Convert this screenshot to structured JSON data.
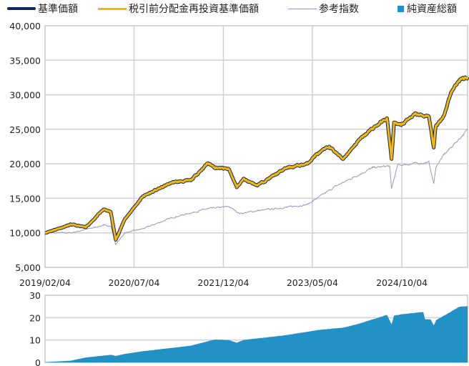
{
  "legend": [
    {
      "label": "基準価額",
      "color": "#0d2466",
      "kind": "line"
    },
    {
      "label": "税引前分配金再投資基準価額",
      "color": "#f5b800",
      "kind": "line"
    },
    {
      "label": "参考指数",
      "color": "#9b93c8",
      "kind": "line"
    },
    {
      "label": "純資産総額",
      "color": "#2191c6",
      "kind": "box"
    }
  ],
  "chart_data": [
    {
      "type": "line",
      "xlim": [
        "2019/02/04",
        "2025/10/20"
      ],
      "ylim": [
        5000,
        40000
      ],
      "yticks": [
        "5,000",
        "10,000",
        "15,000",
        "20,000",
        "25,000",
        "30,000",
        "35,000",
        "40,000"
      ],
      "ytick_values": [
        5000,
        10000,
        15000,
        20000,
        25000,
        30000,
        35000,
        40000
      ],
      "xticks": [
        "2019/02/04",
        "2020/07/04",
        "2021/12/04",
        "2023/05/04",
        "2024/10/04"
      ],
      "grid": true,
      "legend_position": "top",
      "series": [
        {
          "name": "基準価額",
          "color": "#0d2466",
          "points": [
            [
              "2019/02/04",
              10000
            ],
            [
              "2019/07/05",
              11200
            ],
            [
              "2019/09/28",
              10800
            ],
            [
              "2020/01/10",
              13400
            ],
            [
              "2020/02/20",
              13000
            ],
            [
              "2020/03/20",
              9000
            ],
            [
              "2020/05/12",
              12000
            ],
            [
              "2020/08/25",
              15300
            ],
            [
              "2021/02/10",
              17300
            ],
            [
              "2021/05/30",
              17600
            ],
            [
              "2021/09/05",
              20100
            ],
            [
              "2021/10/15",
              19500
            ],
            [
              "2022/01/05",
              19200
            ],
            [
              "2022/02/20",
              16600
            ],
            [
              "2022/03/30",
              17800
            ],
            [
              "2022/06/20",
              16900
            ],
            [
              "2022/12/05",
              19400
            ],
            [
              "2023/04/05",
              20000
            ],
            [
              "2023/05/20",
              21200
            ],
            [
              "2023/08/10",
              22500
            ],
            [
              "2023/10/28",
              20700
            ],
            [
              "2024/01/25",
              23300
            ],
            [
              "2024/04/15",
              25100
            ],
            [
              "2024/07/10",
              26600
            ],
            [
              "2024/08/05",
              20700
            ],
            [
              "2024/08/20",
              26000
            ],
            [
              "2024/09/30",
              25600
            ],
            [
              "2024/12/20",
              27200
            ],
            [
              "2025/03/10",
              26800
            ],
            [
              "2025/04/07",
              22400
            ],
            [
              "2025/04/18",
              25400
            ],
            [
              "2025/06/05",
              27000
            ],
            [
              "2025/07/15",
              30300
            ],
            [
              "2025/09/01",
              32100
            ],
            [
              "2025/10/20",
              32600
            ]
          ]
        },
        {
          "name": "税引前分配金再投資基準価額",
          "color": "#f5b800",
          "points": [
            [
              "2019/02/04",
              10000
            ],
            [
              "2019/07/05",
              11200
            ],
            [
              "2019/09/28",
              10800
            ],
            [
              "2020/01/10",
              13400
            ],
            [
              "2020/02/20",
              13000
            ],
            [
              "2020/03/20",
              9000
            ],
            [
              "2020/05/12",
              12000
            ],
            [
              "2020/08/25",
              15300
            ],
            [
              "2021/02/10",
              17300
            ],
            [
              "2021/05/30",
              17600
            ],
            [
              "2021/09/05",
              20100
            ],
            [
              "2021/10/15",
              19500
            ],
            [
              "2022/01/05",
              19200
            ],
            [
              "2022/02/20",
              16600
            ],
            [
              "2022/03/30",
              17800
            ],
            [
              "2022/06/20",
              16900
            ],
            [
              "2022/12/05",
              19400
            ],
            [
              "2023/04/05",
              20000
            ],
            [
              "2023/05/20",
              21200
            ],
            [
              "2023/08/10",
              22500
            ],
            [
              "2023/10/28",
              20700
            ],
            [
              "2024/01/25",
              23300
            ],
            [
              "2024/04/15",
              25100
            ],
            [
              "2024/07/10",
              26600
            ],
            [
              "2024/08/05",
              20700
            ],
            [
              "2024/08/20",
              26000
            ],
            [
              "2024/09/30",
              25600
            ],
            [
              "2024/12/20",
              27200
            ],
            [
              "2025/03/10",
              26800
            ],
            [
              "2025/04/07",
              22400
            ],
            [
              "2025/04/18",
              25400
            ],
            [
              "2025/06/05",
              27000
            ],
            [
              "2025/07/15",
              30300
            ],
            [
              "2025/09/01",
              32100
            ],
            [
              "2025/10/20",
              32600
            ]
          ]
        },
        {
          "name": "参考指数",
          "color": "#9b93c8",
          "points": [
            [
              "2019/02/04",
              10000
            ],
            [
              "2019/07/05",
              10000
            ],
            [
              "2020/01/10",
              11100
            ],
            [
              "2020/02/20",
              11000
            ],
            [
              "2020/03/20",
              8300
            ],
            [
              "2020/05/12",
              10000
            ],
            [
              "2020/08/25",
              10600
            ],
            [
              "2021/02/10",
              12200
            ],
            [
              "2021/09/05",
              13500
            ],
            [
              "2022/01/05",
              13800
            ],
            [
              "2022/03/10",
              12800
            ],
            [
              "2022/06/20",
              13200
            ],
            [
              "2022/12/05",
              13700
            ],
            [
              "2023/04/05",
              14100
            ],
            [
              "2023/09/20",
              16800
            ],
            [
              "2024/04/15",
              19400
            ],
            [
              "2024/07/25",
              19700
            ],
            [
              "2024/08/05",
              16400
            ],
            [
              "2024/09/10",
              19800
            ],
            [
              "2025/03/10",
              20200
            ],
            [
              "2025/04/07",
              17100
            ],
            [
              "2025/04/20",
              19600
            ],
            [
              "2025/06/05",
              21300
            ],
            [
              "2025/10/20",
              24900
            ]
          ]
        }
      ]
    },
    {
      "type": "area",
      "xlim": [
        "2019/02/04",
        "2025/10/20"
      ],
      "ylim": [
        0,
        30
      ],
      "yticks": [
        "0",
        "10",
        "20",
        "30"
      ],
      "ytick_values": [
        0,
        10,
        20,
        30
      ],
      "grid": true,
      "series": [
        {
          "name": "純資産総額",
          "color": "#2191c6",
          "points": [
            [
              "2019/02/04",
              0.1
            ],
            [
              "2019/07/05",
              0.8
            ],
            [
              "2019/09/28",
              2.2
            ],
            [
              "2020/02/20",
              3.4
            ],
            [
              "2020/03/20",
              2.9
            ],
            [
              "2020/05/12",
              3.8
            ],
            [
              "2020/08/25",
              5.0
            ],
            [
              "2021/02/10",
              6.5
            ],
            [
              "2021/05/30",
              7.5
            ],
            [
              "2021/10/15",
              10.2
            ],
            [
              "2022/01/05",
              10.0
            ],
            [
              "2022/02/20",
              8.8
            ],
            [
              "2022/03/30",
              10.0
            ],
            [
              "2022/12/05",
              12.2
            ],
            [
              "2023/06/10",
              14.5
            ],
            [
              "2023/10/28",
              15.5
            ],
            [
              "2024/01/25",
              17.2
            ],
            [
              "2024/07/10",
              21.2
            ],
            [
              "2024/08/05",
              17.0
            ],
            [
              "2024/08/20",
              21.0
            ],
            [
              "2024/12/20",
              22.2
            ],
            [
              "2025/02/05",
              22.5
            ],
            [
              "2025/02/15",
              19.3
            ],
            [
              "2025/03/20",
              19.2
            ],
            [
              "2025/04/07",
              16.5
            ],
            [
              "2025/04/20",
              18.8
            ],
            [
              "2025/06/20",
              21.5
            ],
            [
              "2025/09/01",
              24.8
            ],
            [
              "2025/10/20",
              25.2
            ]
          ]
        }
      ]
    }
  ]
}
